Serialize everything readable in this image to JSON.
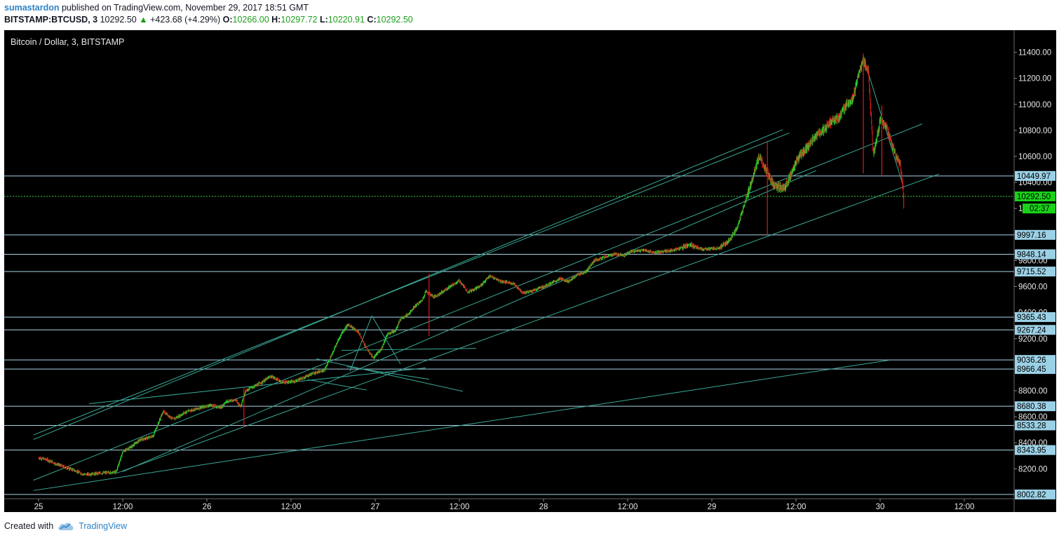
{
  "header": {
    "username": "sumastardon",
    "published_text": "published on TradingView.com, November 29, 2017 18:51 GMT",
    "symbol": "BITSTAMP:BTCUSD, 3",
    "last_price": "10292.50",
    "change": "+423.68 (+4.29%)",
    "open_label": "O:",
    "open_value": "10266.00",
    "high_label": "H:",
    "high_value": "10297.72",
    "low_label": "L:",
    "low_value": "10220.91",
    "close_label": "C:",
    "close_value": "10292.50"
  },
  "footer": {
    "created_with": "Created with",
    "brand": "TradingView"
  },
  "colors": {
    "background": "#000000",
    "up": "#2bd22b",
    "down": "#e01a1a",
    "trendline": "#3aa998",
    "level_line": "#a9d4e6",
    "level_tag_bg": "#9bd1e6",
    "price_line": "#39d339",
    "price_tag_bg": "#19d319",
    "axis_text": "#e8e8e8"
  },
  "chart_data": {
    "type": "candlestick",
    "title": "Bitcoin / Dollar, 3, BITSTAMP",
    "ylim": [
      7970,
      11570
    ],
    "xlim": [
      0,
      5.96
    ],
    "x_unit": "days since Nov 25 00:00",
    "y_ticks": [
      "8200.00",
      "8400.00",
      "8600.00",
      "8800.00",
      "9200.00",
      "9400.00",
      "9600.00",
      "9800.00",
      "10000.00",
      "10200.00",
      "10400.00",
      "10600.00",
      "10800.00",
      "11000.00",
      "11200.00",
      "11400.00"
    ],
    "y_tick_values": [
      8200,
      8400,
      8600,
      8800,
      9200,
      9400,
      9600,
      9800,
      10000,
      10200,
      10400,
      10600,
      10800,
      11000,
      11200,
      11400
    ],
    "x_ticks": [
      {
        "label": "25",
        "t": 0.0
      },
      {
        "label": "12:00",
        "t": 0.5
      },
      {
        "label": "26",
        "t": 1.0
      },
      {
        "label": "12:00",
        "t": 1.5
      },
      {
        "label": "27",
        "t": 2.0
      },
      {
        "label": "12:00",
        "t": 2.5
      },
      {
        "label": "28",
        "t": 3.0
      },
      {
        "label": "12:00",
        "t": 3.5
      },
      {
        "label": "29",
        "t": 4.0
      },
      {
        "label": "12:00",
        "t": 4.5
      },
      {
        "label": "30",
        "t": 5.0
      },
      {
        "label": "12:00",
        "t": 5.5
      }
    ],
    "levels": [
      {
        "label": "10449.97",
        "value": 10449.97
      },
      {
        "label": "9997.16",
        "value": 9997.16
      },
      {
        "label": "9848.14",
        "value": 9848.14
      },
      {
        "label": "9715.52",
        "value": 9715.52
      },
      {
        "label": "9365.43",
        "value": 9365.43
      },
      {
        "label": "9267.24",
        "value": 9267.24
      },
      {
        "label": "9036.26",
        "value": 9036.26
      },
      {
        "label": "8966.45",
        "value": 8966.45
      },
      {
        "label": "8680.38",
        "value": 8680.38
      },
      {
        "label": "8533.28",
        "value": 8533.28
      },
      {
        "label": "8343.95",
        "value": 8343.95
      },
      {
        "label": "8002.82",
        "value": 8002.82
      }
    ],
    "last_price": {
      "label": "10292.50",
      "value": 10292.5
    },
    "countdown_tag": {
      "label": "02:37",
      "value": 10200
    },
    "trendlines": [
      [
        -0.03,
        8425,
        4.42,
        10805
      ],
      [
        -0.03,
        8460,
        4.46,
        10780
      ],
      [
        -0.03,
        8112,
        5.25,
        10850
      ],
      [
        0.46,
        8165,
        5.35,
        10465
      ],
      [
        0.5,
        8178,
        4.62,
        10492
      ],
      [
        -0.03,
        8033,
        5.06,
        9036
      ],
      [
        0.3,
        8700,
        2.3,
        8975
      ],
      [
        1.65,
        9045,
        2.52,
        8795
      ],
      [
        1.6,
        8885,
        1.95,
        8805
      ],
      [
        1.83,
        8985,
        2.32,
        8888
      ],
      [
        1.8,
        9110,
        2.6,
        9125
      ],
      [
        1.98,
        9375,
        2.15,
        9005
      ],
      [
        1.98,
        9375,
        1.85,
        8950
      ],
      [
        4.93,
        11240,
        5.14,
        10360
      ]
    ],
    "price_path": [
      [
        0.0,
        8285
      ],
      [
        0.05,
        8270
      ],
      [
        0.1,
        8240
      ],
      [
        0.15,
        8215
      ],
      [
        0.2,
        8195
      ],
      [
        0.27,
        8155
      ],
      [
        0.33,
        8162
      ],
      [
        0.4,
        8170
      ],
      [
        0.46,
        8175
      ],
      [
        0.5,
        8330
      ],
      [
        0.55,
        8370
      ],
      [
        0.6,
        8420
      ],
      [
        0.68,
        8450
      ],
      [
        0.74,
        8640
      ],
      [
        0.8,
        8580
      ],
      [
        0.88,
        8640
      ],
      [
        0.95,
        8665
      ],
      [
        1.02,
        8690
      ],
      [
        1.08,
        8670
      ],
      [
        1.12,
        8720
      ],
      [
        1.17,
        8730
      ],
      [
        1.2,
        8680
      ],
      [
        1.23,
        8800
      ],
      [
        1.32,
        8860
      ],
      [
        1.38,
        8910
      ],
      [
        1.45,
        8865
      ],
      [
        1.52,
        8870
      ],
      [
        1.58,
        8902
      ],
      [
        1.62,
        8930
      ],
      [
        1.7,
        8960
      ],
      [
        1.76,
        9130
      ],
      [
        1.8,
        9240
      ],
      [
        1.84,
        9310
      ],
      [
        1.9,
        9250
      ],
      [
        1.95,
        9120
      ],
      [
        1.99,
        9050
      ],
      [
        2.04,
        9130
      ],
      [
        2.07,
        9230
      ],
      [
        2.12,
        9265
      ],
      [
        2.15,
        9350
      ],
      [
        2.2,
        9390
      ],
      [
        2.24,
        9455
      ],
      [
        2.28,
        9495
      ],
      [
        2.3,
        9565
      ],
      [
        2.35,
        9520
      ],
      [
        2.4,
        9560
      ],
      [
        2.45,
        9605
      ],
      [
        2.5,
        9645
      ],
      [
        2.55,
        9560
      ],
      [
        2.62,
        9600
      ],
      [
        2.68,
        9680
      ],
      [
        2.75,
        9640
      ],
      [
        2.82,
        9625
      ],
      [
        2.88,
        9550
      ],
      [
        2.95,
        9575
      ],
      [
        3.02,
        9610
      ],
      [
        3.1,
        9660
      ],
      [
        3.15,
        9640
      ],
      [
        3.2,
        9690
      ],
      [
        3.25,
        9710
      ],
      [
        3.3,
        9800
      ],
      [
        3.35,
        9820
      ],
      [
        3.42,
        9850
      ],
      [
        3.48,
        9840
      ],
      [
        3.52,
        9870
      ],
      [
        3.6,
        9880
      ],
      [
        3.66,
        9860
      ],
      [
        3.72,
        9870
      ],
      [
        3.8,
        9890
      ],
      [
        3.86,
        9920
      ],
      [
        3.9,
        9910
      ],
      [
        3.95,
        9885
      ],
      [
        4.0,
        9890
      ],
      [
        4.05,
        9900
      ],
      [
        4.1,
        9950
      ],
      [
        4.15,
        10050
      ],
      [
        4.2,
        10260
      ],
      [
        4.24,
        10420
      ],
      [
        4.28,
        10600
      ],
      [
        4.33,
        10470
      ],
      [
        4.37,
        10380
      ],
      [
        4.42,
        10350
      ],
      [
        4.46,
        10420
      ],
      [
        4.5,
        10560
      ],
      [
        4.56,
        10660
      ],
      [
        4.62,
        10760
      ],
      [
        4.66,
        10800
      ],
      [
        4.72,
        10880
      ],
      [
        4.76,
        10900
      ],
      [
        4.8,
        11000
      ],
      [
        4.84,
        11050
      ],
      [
        4.88,
        11270
      ],
      [
        4.9,
        11340
      ],
      [
        4.93,
        11250
      ],
      [
        4.96,
        10600
      ],
      [
        5.0,
        10880
      ],
      [
        5.04,
        10820
      ],
      [
        5.08,
        10650
      ],
      [
        5.12,
        10540
      ],
      [
        5.14,
        10292
      ]
    ],
    "spikes": [
      {
        "t": 1.22,
        "low": 8520,
        "high": 8820
      },
      {
        "t": 2.32,
        "low": 9220,
        "high": 9700
      },
      {
        "t": 4.33,
        "low": 9990,
        "high": 10720
      },
      {
        "t": 4.9,
        "low": 10470,
        "high": 11390
      },
      {
        "t": 5.01,
        "low": 10450,
        "high": 10990
      },
      {
        "t": 5.14,
        "low": 10200,
        "high": 10320
      }
    ]
  }
}
